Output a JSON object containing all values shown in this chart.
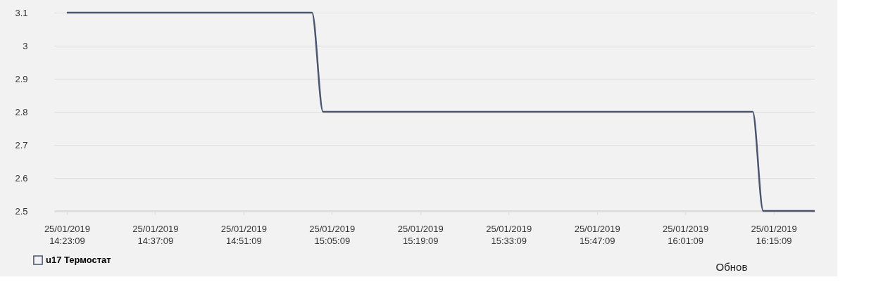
{
  "chart_data": {
    "type": "line",
    "x": [
      "2019-01-25T14:23:09",
      "2019-01-25T15:02:00",
      "2019-01-25T15:03:45",
      "2019-01-25T16:11:50",
      "2019-01-25T16:13:30",
      "2019-01-25T16:21:40"
    ],
    "series": [
      {
        "name": "u17 Термостат",
        "color": "#4a5670",
        "values": [
          3.1,
          3.1,
          2.8,
          2.8,
          2.5,
          2.5
        ]
      }
    ],
    "xlim": [
      "2019-01-25T14:21:09",
      "2019-01-25T16:21:40"
    ],
    "xticks": [
      {
        "value": "2019-01-25T14:23:09",
        "label": "25/01/2019\n14:23:09"
      },
      {
        "value": "2019-01-25T14:37:09",
        "label": "25/01/2019\n14:37:09"
      },
      {
        "value": "2019-01-25T14:51:09",
        "label": "25/01/2019\n14:51:09"
      },
      {
        "value": "2019-01-25T15:05:09",
        "label": "25/01/2019\n15:05:09"
      },
      {
        "value": "2019-01-25T15:19:09",
        "label": "25/01/2019\n15:19:09"
      },
      {
        "value": "2019-01-25T15:33:09",
        "label": "25/01/2019\n15:33:09"
      },
      {
        "value": "2019-01-25T15:47:09",
        "label": "25/01/2019\n15:47:09"
      },
      {
        "value": "2019-01-25T16:01:09",
        "label": "25/01/2019\n16:01:09"
      },
      {
        "value": "2019-01-25T16:15:09",
        "label": "25/01/2019\n16:15:09"
      }
    ],
    "ylim": [
      2.5,
      3.1
    ],
    "yticks": [
      2.5,
      2.6,
      2.7,
      2.8,
      2.9,
      3,
      3.1
    ],
    "grid": "y",
    "legend": "bottom left",
    "marker": "none",
    "line_style": "solid",
    "annotations": [
      "Обнов"
    ]
  }
}
